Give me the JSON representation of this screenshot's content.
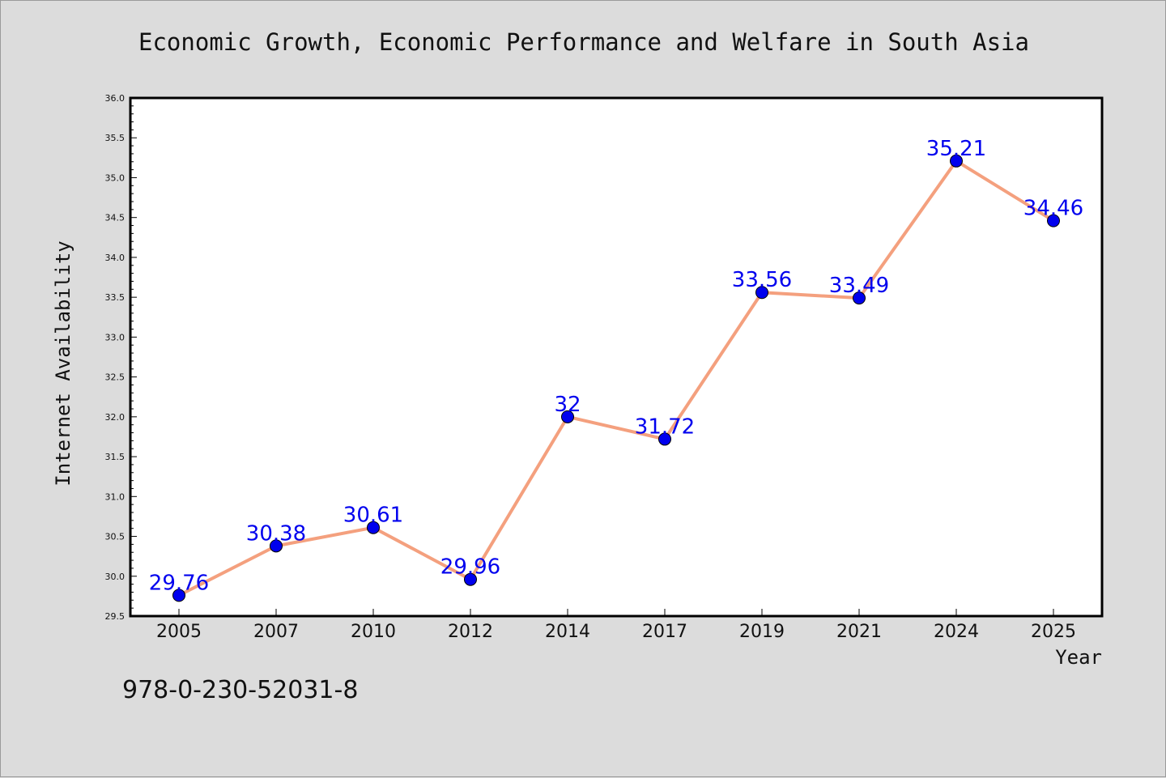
{
  "chart_data": {
    "type": "line",
    "title": "Economic Growth, Economic Performance and Welfare in South Asia",
    "xlabel": "Year",
    "ylabel": "Internet Availability",
    "categories": [
      "2005",
      "2007",
      "2010",
      "2012",
      "2014",
      "2017",
      "2019",
      "2021",
      "2024",
      "2025"
    ],
    "series": [
      {
        "values": [
          29.76,
          30.38,
          30.61,
          29.96,
          32,
          31.72,
          33.56,
          33.49,
          35.21,
          34.46
        ],
        "labels": [
          "29.76",
          "30.38",
          "30.61",
          "29.96",
          "32",
          "31.72",
          "33.56",
          "33.49",
          "35.21",
          "34.46"
        ],
        "line_color": "#f4a07e",
        "marker_color": "#0000ee"
      }
    ],
    "ylim": [
      29.5,
      36.0
    ],
    "yticks": [
      "29.5",
      "30.0",
      "30.5",
      "31.0",
      "31.5",
      "32.0",
      "32.5",
      "33.0",
      "33.5",
      "34.0",
      "34.5",
      "35.0",
      "35.5",
      "36.0"
    ],
    "grid": false,
    "legend": "none"
  },
  "footer": {
    "isbn": "978-0-230-52031-8"
  }
}
